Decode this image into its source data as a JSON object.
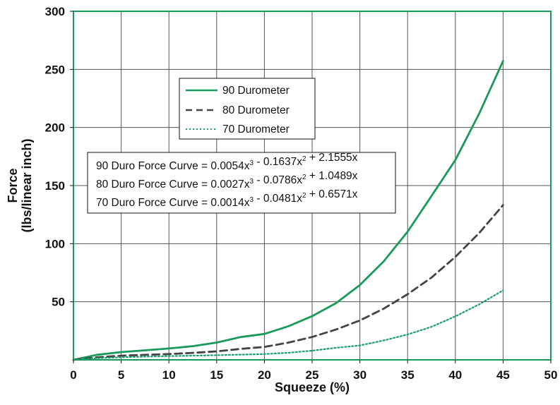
{
  "chart_data": {
    "type": "line",
    "title": "",
    "xlabel": "Squeeze (%)",
    "ylabel": "Force",
    "ylabel_line2": "(lbs/linear inch)",
    "xlim": [
      0,
      50
    ],
    "ylim": [
      0,
      300
    ],
    "xticks": [
      "0",
      "5",
      "10",
      "15",
      "20",
      "25",
      "30",
      "35",
      "40",
      "45",
      "50"
    ],
    "yticks": [
      "50",
      "100",
      "150",
      "200",
      "250",
      "300"
    ],
    "grid": true,
    "legend_position": "top-center",
    "series": [
      {
        "name": "90 Durometer",
        "color": "#1a9a5a",
        "style": "solid",
        "coefficients": [
          0.0054,
          -0.1637,
          2.1555
        ],
        "x": [
          0,
          2.5,
          5,
          7.5,
          10,
          12.5,
          15,
          17.5,
          20,
          22.5,
          25,
          27.5,
          30,
          32.5,
          35,
          37.5,
          40,
          42.5,
          45
        ],
        "y": [
          0,
          4.4,
          6.7,
          8.2,
          9.8,
          11.8,
          14.9,
          19.6,
          22.3,
          28.9,
          37.6,
          48.8,
          64.4,
          84.8,
          110.3,
          141.0,
          172.0,
          212.0,
          257.3
        ]
      },
      {
        "name": "80 Durometer",
        "color": "#444444",
        "style": "dashed",
        "coefficients": [
          0.0027,
          -0.0786,
          1.0489
        ],
        "x": [
          0,
          2.5,
          5,
          7.5,
          10,
          12.5,
          15,
          17.5,
          20,
          22.5,
          25,
          27.5,
          30,
          32.5,
          35,
          37.5,
          40,
          42.5,
          45
        ],
        "y": [
          0,
          2.2,
          3.6,
          4.3,
          5.0,
          6.0,
          7.3,
          9.4,
          11.1,
          14.8,
          19.7,
          26.1,
          33.9,
          44.1,
          56.5,
          70.8,
          88.6,
          109.2,
          133.2
        ]
      },
      {
        "name": "70 Durometer",
        "color": "#1aa06a",
        "style": "dotted",
        "coefficients": [
          0.0014,
          -0.0481,
          0.6571
        ],
        "x": [
          0,
          2.5,
          5,
          7.5,
          10,
          12.5,
          15,
          17.5,
          20,
          22.5,
          25,
          27.5,
          30,
          32.5,
          35,
          37.5,
          40,
          42.5,
          45
        ],
        "y": [
          0,
          1.4,
          2.2,
          2.8,
          3.2,
          3.6,
          4.0,
          4.5,
          5.0,
          6.1,
          7.9,
          10.4,
          12.4,
          16.7,
          21.8,
          28.4,
          37.4,
          47.8,
          59.8
        ]
      }
    ],
    "equations": [
      {
        "label": "90 Duro Force Curve",
        "a": "= 0.0054x",
        "b": " - 0.1637x",
        "c": " + 2.1555x"
      },
      {
        "label": "80 Duro Force Curve",
        "a": "= 0.0027x",
        "b": " - 0.0786x",
        "c": " + 1.0489x"
      },
      {
        "label": "70 Duro Force Curve",
        "a": "= 0.0014x",
        "b": " - 0.0481x",
        "c": " + 0.6571x"
      }
    ],
    "sup3": "3",
    "sup2": "2"
  }
}
